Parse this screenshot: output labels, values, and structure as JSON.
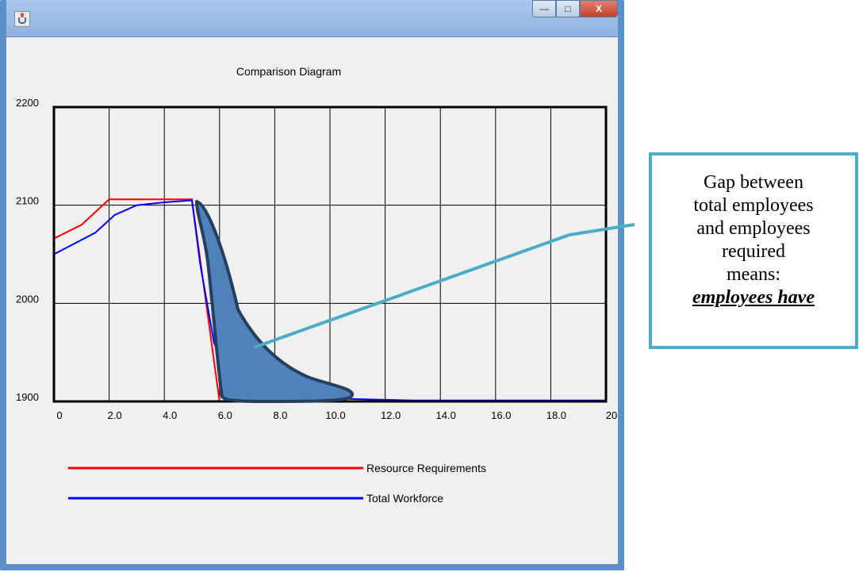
{
  "window": {
    "title": ""
  },
  "chart_data": {
    "type": "line",
    "title": "Comparison Diagram",
    "xlabel": "",
    "ylabel": "",
    "xlim": [
      0,
      20
    ],
    "ylim": [
      1900,
      2200
    ],
    "x_ticks": [
      "0",
      "2.0",
      "4.0",
      "6.0",
      "8.0",
      "10.0",
      "12.0",
      "14.0",
      "16.0",
      "18.0",
      "20"
    ],
    "y_ticks": [
      "1900",
      "2000",
      "2100",
      "2200"
    ],
    "grid": true,
    "legend_position": "bottom-left",
    "series": [
      {
        "name": "Resource Requirements",
        "color": "#ff0000",
        "points": [
          [
            0,
            2066
          ],
          [
            1.0,
            2080
          ],
          [
            2.0,
            2106
          ],
          [
            4.0,
            2106
          ],
          [
            5.0,
            2106
          ],
          [
            6.0,
            1900
          ],
          [
            20,
            1900
          ]
        ]
      },
      {
        "name": "Total Workforce",
        "color": "#0000ff",
        "points": [
          [
            0,
            2050
          ],
          [
            1.5,
            2072
          ],
          [
            2.2,
            2090
          ],
          [
            3.0,
            2100
          ],
          [
            4.0,
            2103
          ],
          [
            5.0,
            2105
          ],
          [
            5.3,
            2040
          ],
          [
            5.8,
            1960
          ],
          [
            6.3,
            1925
          ],
          [
            7.0,
            1913
          ],
          [
            8.5,
            1906
          ],
          [
            10.0,
            1903
          ],
          [
            11.5,
            1902
          ],
          [
            13.0,
            1901
          ],
          [
            20,
            1901
          ]
        ]
      }
    ]
  },
  "annotation": {
    "highlight_color": "#4f81bd",
    "connector_color": "#4bacc6",
    "lines": [
      "Gap between",
      "total employees",
      "and employees",
      "required",
      "means:"
    ],
    "emphasis": "employees have"
  }
}
